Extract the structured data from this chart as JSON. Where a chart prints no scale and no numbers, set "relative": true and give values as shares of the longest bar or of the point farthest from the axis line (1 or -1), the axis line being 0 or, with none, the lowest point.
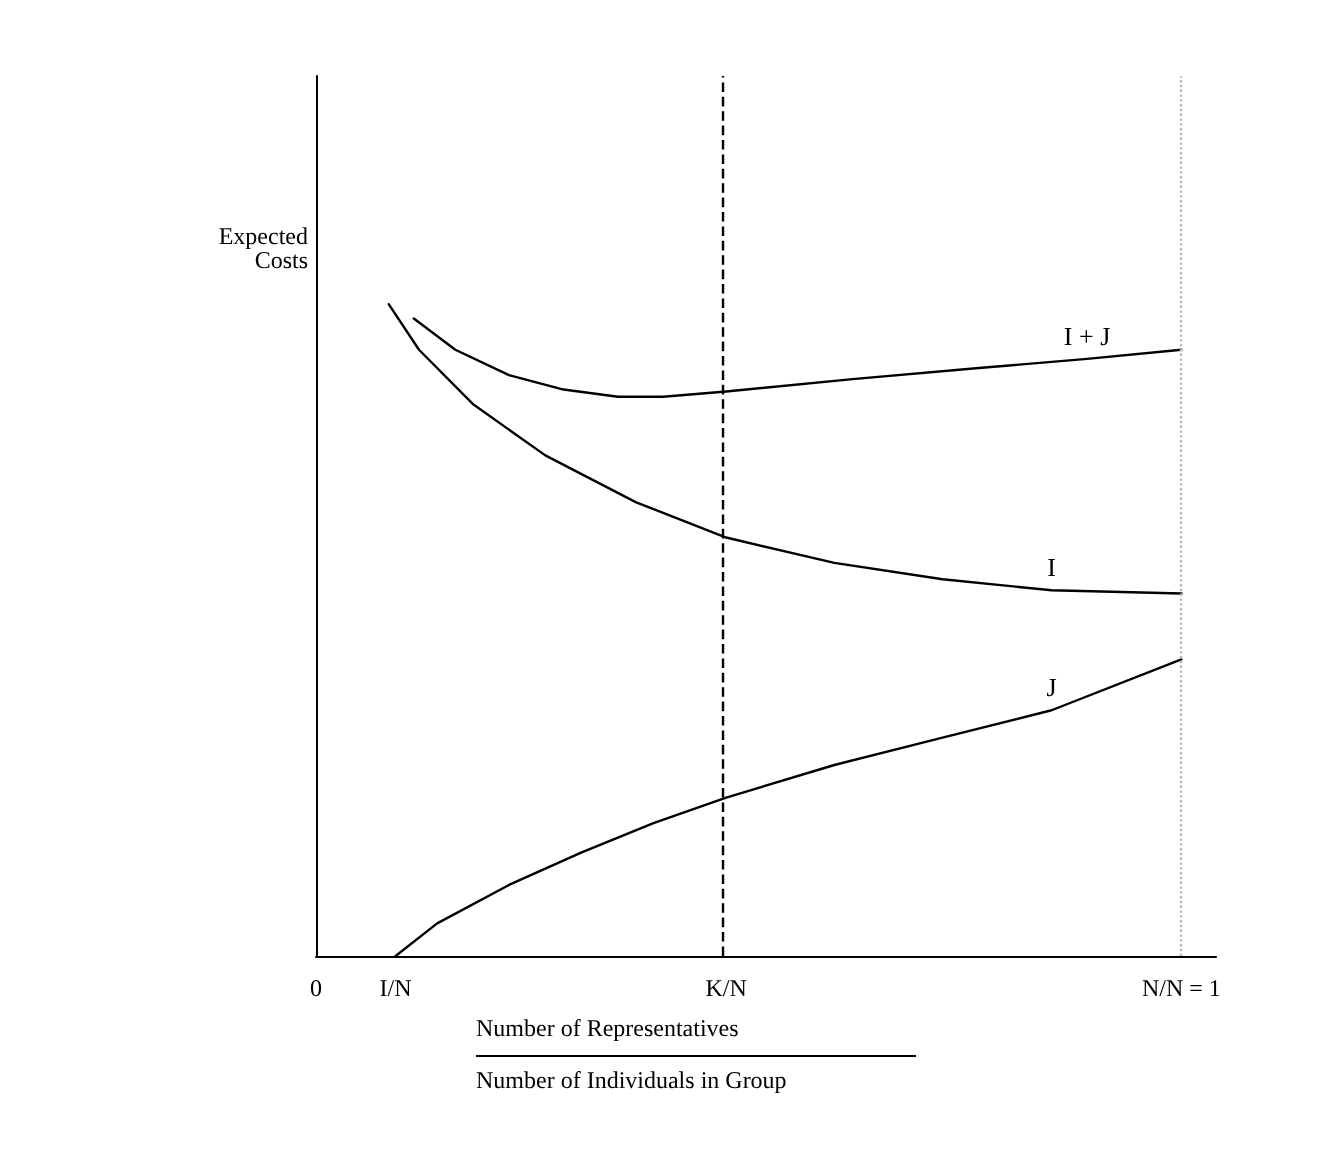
{
  "chart_data": {
    "type": "line",
    "relative": true,
    "ylabel": "Expected Costs",
    "xlabel": "Number of Representatives\nNumber of Individuals in Group",
    "xlim": [
      0,
      1.04
    ],
    "xticks": [
      {
        "value": 0,
        "label": "0"
      },
      {
        "value": 0.092,
        "label": "I/N"
      },
      {
        "value": 0.474,
        "label": "K/N"
      },
      {
        "value": 1,
        "label": "N/N = 1"
      }
    ],
    "series": [
      {
        "name": "I + J",
        "color": "#000000",
        "x": [
          0.113,
          0.161,
          0.223,
          0.286,
          0.349,
          0.401,
          0.474,
          0.62,
          0.766,
          0.891,
          1
        ],
        "values": [
          0.978,
          0.93,
          0.891,
          0.869,
          0.858,
          0.858,
          0.866,
          0.885,
          0.902,
          0.916,
          0.93
        ]
      },
      {
        "name": "I",
        "color": "#000000",
        "x": [
          0.084,
          0.119,
          0.182,
          0.265,
          0.37,
          0.474,
          0.599,
          0.724,
          0.85,
          1
        ],
        "values": [
          1,
          0.93,
          0.846,
          0.768,
          0.696,
          0.642,
          0.603,
          0.578,
          0.561,
          0.556
        ]
      },
      {
        "name": "J",
        "color": "#000000",
        "x": [
          0.092,
          0.14,
          0.223,
          0.307,
          0.39,
          0.474,
          0.599,
          0.724,
          0.85,
          1
        ],
        "values": [
          0,
          0.05,
          0.109,
          0.159,
          0.204,
          0.243,
          0.293,
          0.335,
          0.377,
          0.455
        ]
      }
    ],
    "ref_lines": [
      {
        "axis": "x",
        "value": 0.474,
        "color": "#000000",
        "line_style": "dashed"
      },
      {
        "axis": "x",
        "value": 1,
        "color": "#bbbbbb",
        "line_style": "dotted"
      }
    ],
    "legend": false,
    "grid": false,
    "marker": "none",
    "line_style": "solid"
  }
}
